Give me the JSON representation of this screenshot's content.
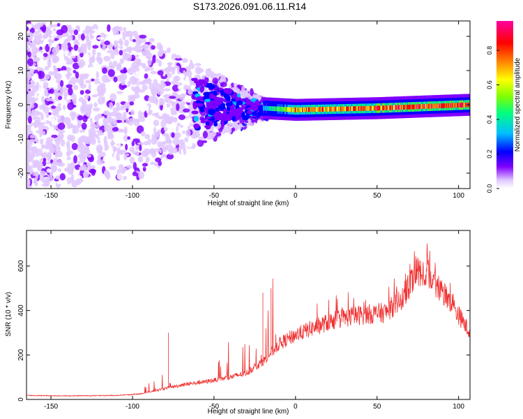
{
  "title": "S173.2026.091.06.11.R14",
  "chart_data": [
    {
      "type": "heatmap",
      "xlabel": "Height of straight line (km)",
      "ylabel": "Frequency (Hz)",
      "xlim": [
        -165,
        107
      ],
      "ylim": [
        -24.5,
        24.5
      ],
      "xticks": [
        -150,
        -100,
        -50,
        0,
        50,
        100
      ],
      "yticks": [
        -20,
        -10,
        0,
        10,
        20
      ],
      "colorbar": {
        "label": "Normalized spectral amplitude",
        "ticks": [
          0.0,
          0.2,
          0.4,
          0.6,
          0.8
        ],
        "range": [
          0,
          0.97
        ],
        "colors": [
          "#ffffff",
          "#e0c8ff",
          "#8000ff",
          "#0000ff",
          "#00c0ff",
          "#00ff80",
          "#80ff00",
          "#ffff00",
          "#ff8000",
          "#ff0000",
          "#ff00a0"
        ]
      },
      "description_points": {
        "x_breakpoints": [
          -165,
          -100,
          -60,
          -20,
          0,
          50,
          107
        ],
        "scatter_halfwidth_hz": [
          24,
          22,
          12,
          3,
          1.5,
          1.5,
          1.5
        ],
        "center_freq_hz": [
          0,
          0,
          0,
          -1,
          -1.5,
          -1,
          0
        ],
        "peak_amplitude": [
          0.15,
          0.15,
          0.2,
          0.4,
          0.8,
          0.9,
          0.95
        ]
      }
    },
    {
      "type": "line",
      "xlabel": "Height of straight line (km)",
      "ylabel": "SNR (10 * v/v)",
      "xlim": [
        -165,
        107
      ],
      "ylim": [
        0,
        760
      ],
      "xticks": [
        -150,
        -100,
        -50,
        0,
        50,
        100
      ],
      "yticks": [
        0,
        200,
        400,
        600
      ],
      "color": "#f03030",
      "envelope_x": [
        -165,
        -140,
        -110,
        -95,
        -80,
        -70,
        -55,
        -40,
        -30,
        -20,
        -10,
        0,
        10,
        25,
        40,
        55,
        65,
        75,
        82,
        90,
        100,
        107
      ],
      "envelope_y": [
        18,
        16,
        18,
        25,
        50,
        65,
        80,
        100,
        120,
        170,
        250,
        290,
        320,
        360,
        380,
        390,
        450,
        580,
        560,
        480,
        380,
        300
      ]
    }
  ]
}
